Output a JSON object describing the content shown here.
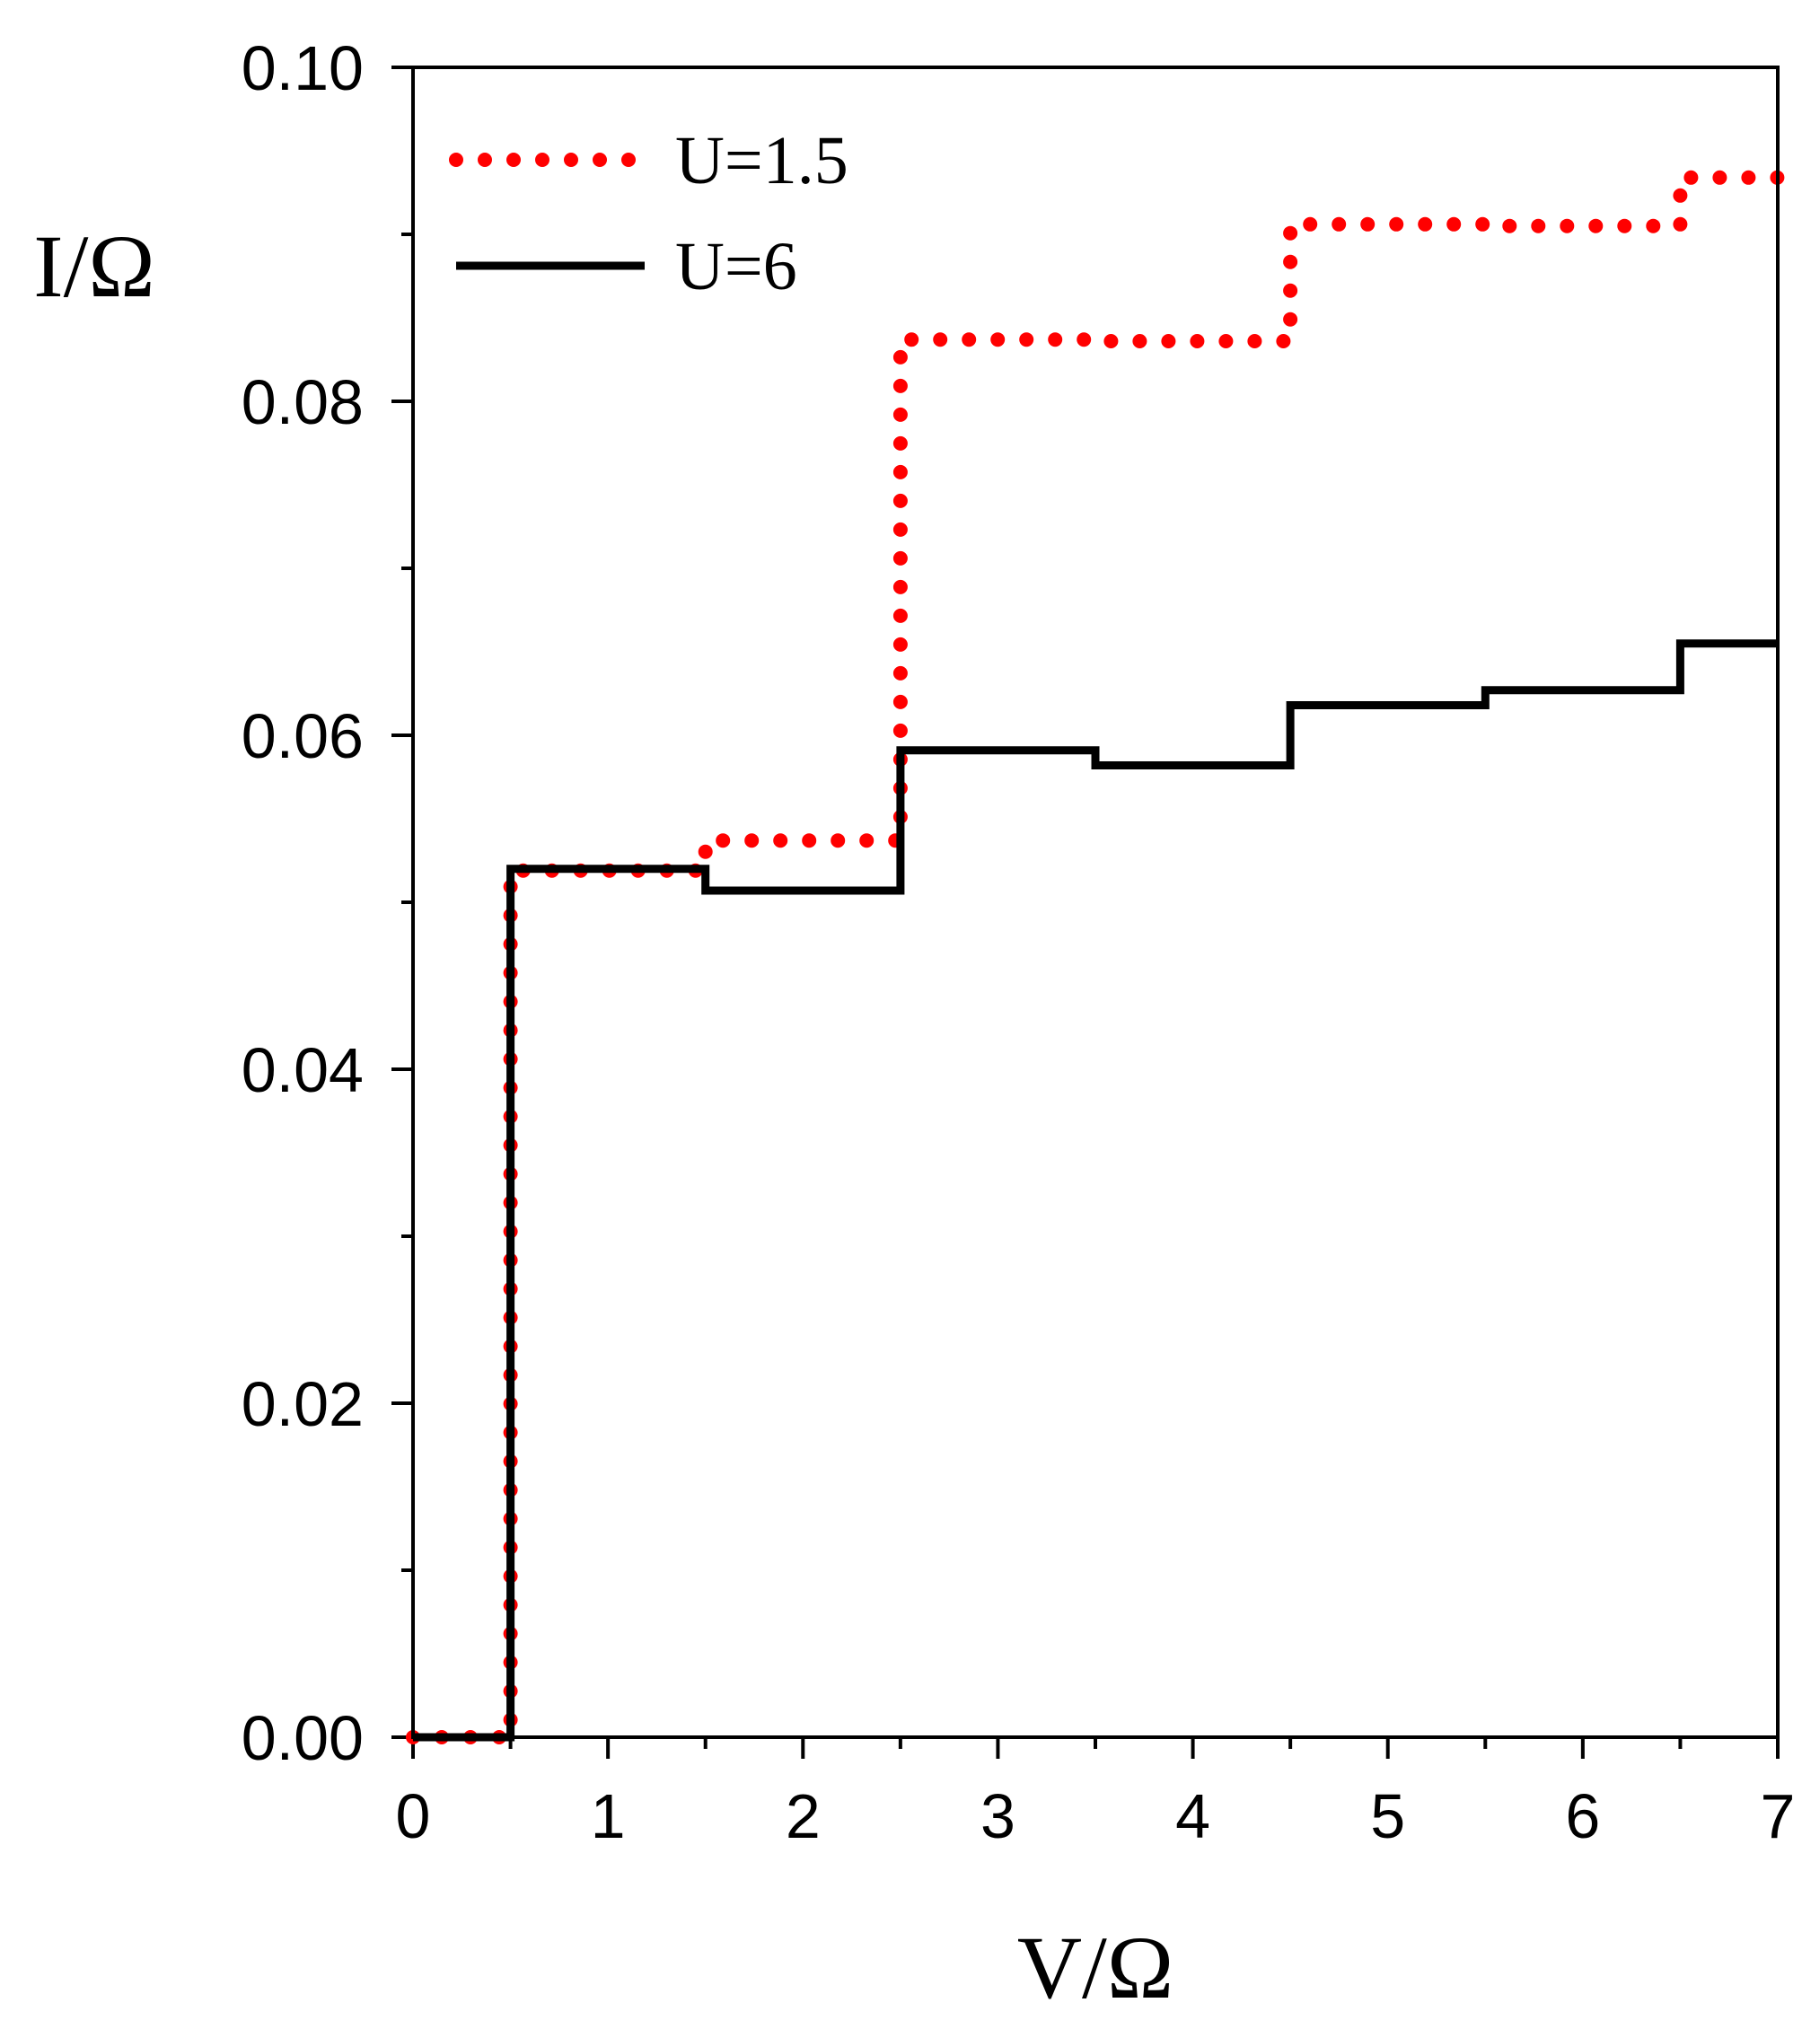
{
  "chart_data": {
    "type": "line",
    "title": "",
    "xlabel": "V/Ω",
    "ylabel": "I/Ω",
    "xlim": [
      0,
      7
    ],
    "ylim": [
      0,
      0.1
    ],
    "x_ticks": [
      "0",
      "1",
      "2",
      "3",
      "4",
      "5",
      "6",
      "7"
    ],
    "y_ticks": [
      "0.00",
      "0.02",
      "0.04",
      "0.06",
      "0.08",
      "0.10"
    ],
    "grid": false,
    "legend_position": "top-left",
    "series": [
      {
        "name": "U=1.5",
        "color": "#ff0000",
        "style": "dotted",
        "x": [
          0,
          0.5,
          0.5,
          1.5,
          1.5,
          2.5,
          2.5,
          3.5,
          3.5,
          4.5,
          4.5,
          5.5,
          5.5,
          6.5,
          6.5,
          7
        ],
        "y": [
          0,
          0,
          0.0519,
          0.0519,
          0.0537,
          0.0537,
          0.0837,
          0.0837,
          0.0836,
          0.0836,
          0.0906,
          0.0906,
          0.0905,
          0.0905,
          0.0934,
          0.0934
        ]
      },
      {
        "name": "U=6",
        "color": "#000000",
        "style": "solid",
        "x": [
          0,
          0.5,
          0.5,
          1.5,
          1.5,
          2.5,
          2.5,
          3.5,
          3.5,
          4.5,
          4.5,
          5.5,
          5.5,
          6.5,
          6.5,
          7
        ],
        "y": [
          0,
          0,
          0.052,
          0.052,
          0.0507,
          0.0507,
          0.0591,
          0.0591,
          0.0582,
          0.0582,
          0.0618,
          0.0618,
          0.0627,
          0.0627,
          0.0655,
          0.0655
        ]
      }
    ]
  }
}
